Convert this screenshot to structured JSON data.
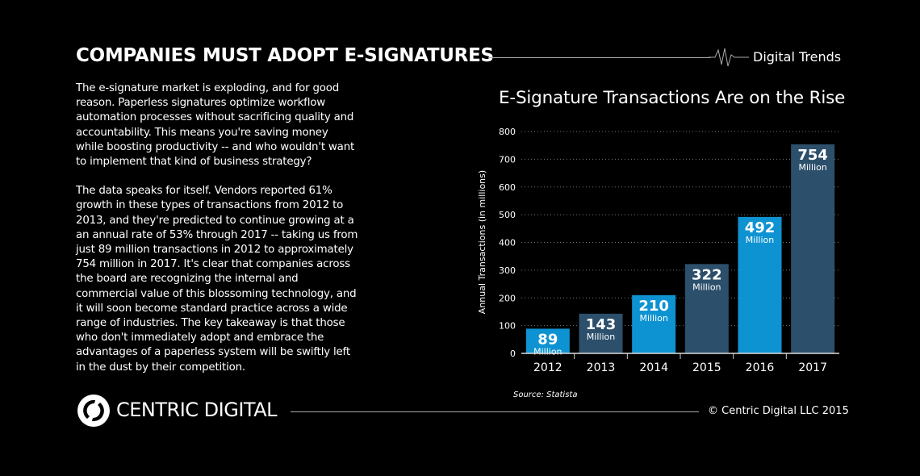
{
  "header": {
    "title": "COMPANIES MUST ADOPT E-SIGNATURES",
    "tag": "Digital Trends"
  },
  "body": {
    "paragraphs": [
      "The e-signature market is exploding, and for good reason. Paperless signatures optimize workflow automation processes without sacrificing quality and accountability. This means you're saving money while boosting productivity -- and who wouldn't want to implement that kind of business strategy?",
      "The data speaks for itself. Vendors reported 61% growth in these types of transactions from 2012 to 2013, and they're predicted to continue growing at a an annual rate of 53% through 2017 -- taking us from just 89 million transactions in 2012 to approximately 754 million in 2017. It's clear that companies across the board are recognizing the internal and commercial value of this blossoming technology, and it will soon become standard practice across a wide range of industries. The key takeaway is that those who don't immediately adopt and embrace the advantages of a paperless system will be swiftly left in the dust by their competition."
    ]
  },
  "chart_data": {
    "type": "bar",
    "title": "E-Signature Transactions Are on the Rise",
    "ylabel": "Annual Transactions (in millions)",
    "xlabel": "",
    "categories": [
      "2012",
      "2013",
      "2014",
      "2015",
      "2016",
      "2017"
    ],
    "values": [
      89,
      143,
      210,
      322,
      492,
      754
    ],
    "data_labels": [
      "89",
      "143",
      "210",
      "322",
      "492",
      "754"
    ],
    "data_label_unit": "Million",
    "ylim": [
      0,
      800
    ],
    "yticks": [
      0,
      100,
      200,
      300,
      400,
      500,
      600,
      700,
      800
    ],
    "grid": true,
    "colors": [
      "#0e93d2",
      "#2c4f6b",
      "#0e93d2",
      "#2c4f6b",
      "#0e93d2",
      "#2c4f6b"
    ],
    "source": "Source: Statista"
  },
  "footer": {
    "brand": "CENTRIC DIGITAL",
    "copyright": "© Centric Digital LLC 2015",
    "logo_icon": "circular-arrows-icon"
  }
}
